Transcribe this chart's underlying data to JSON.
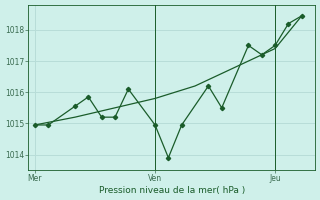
{
  "xlabel": "Pression niveau de la mer( hPa )",
  "background_color": "#cff0ea",
  "grid_color": "#b8ddd8",
  "line_color": "#1a5c2a",
  "tick_label_color": "#3a6b50",
  "xlabel_color": "#1a5c2a",
  "x_ticks_pos": [
    0,
    9,
    18
  ],
  "x_tick_labels": [
    "Mer",
    "Ven",
    "Jeu"
  ],
  "x_vlines": [
    9,
    18
  ],
  "xlim": [
    -0.5,
    21
  ],
  "ylim": [
    1013.5,
    1018.8
  ],
  "y_ticks": [
    1014,
    1015,
    1016,
    1017,
    1018
  ],
  "line1_x": [
    0,
    1,
    3,
    4,
    5,
    6,
    7,
    9,
    10,
    11,
    13,
    14,
    16,
    17,
    18,
    19,
    20
  ],
  "line1_y": [
    1014.95,
    1014.95,
    1015.55,
    1015.85,
    1015.2,
    1015.2,
    1016.1,
    1014.95,
    1013.9,
    1014.95,
    1016.2,
    1015.5,
    1017.5,
    1017.2,
    1017.5,
    1018.2,
    1018.45
  ],
  "line2_x": [
    0,
    3,
    6,
    9,
    12,
    15,
    18,
    20
  ],
  "line2_y": [
    1014.95,
    1015.2,
    1015.5,
    1015.8,
    1016.2,
    1016.8,
    1017.4,
    1018.45
  ]
}
